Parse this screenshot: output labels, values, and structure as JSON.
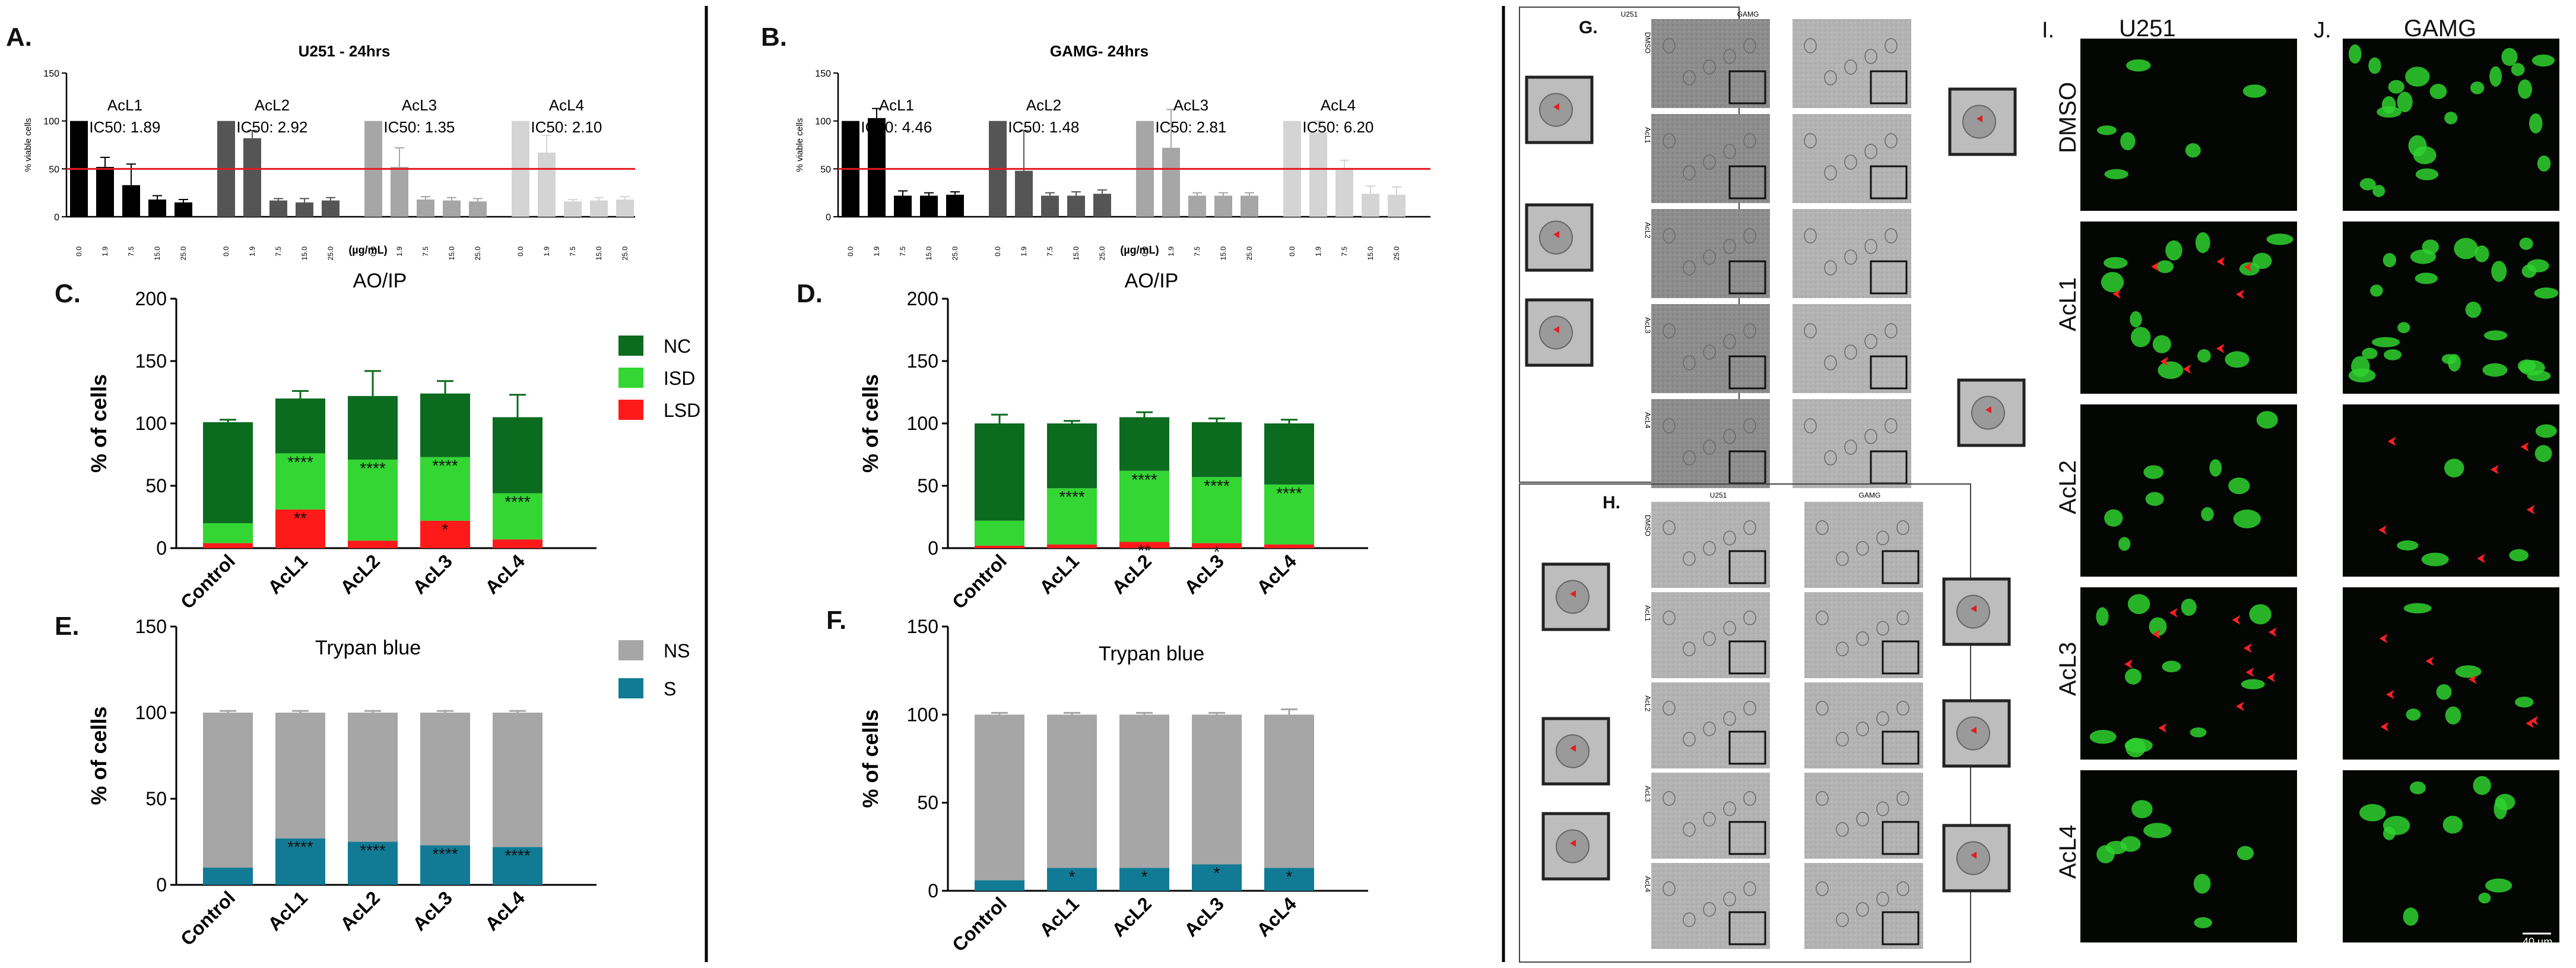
{
  "figure": {
    "panel_labels": [
      "A.",
      "B.",
      "C.",
      "D.",
      "E.",
      "F.",
      "G.",
      "H.",
      "I.",
      "J."
    ],
    "threshold_color": "#e31a1c"
  },
  "chart_data": [
    {
      "id": "A",
      "type": "bar",
      "title": "U251 - 24hrs",
      "xlabel": "(µg/mL)",
      "ylabel": "% viable cells",
      "ylim": [
        0,
        150
      ],
      "yticks": [
        0,
        50,
        100,
        150
      ],
      "threshold": 50,
      "groups": [
        {
          "name": "AcL1",
          "ic50": "IC50: 1.89",
          "color": "#000000",
          "doses": [
            "0.0",
            "1.9",
            "7.5",
            "15.0",
            "25.0"
          ],
          "values": [
            100,
            52,
            33,
            18,
            15
          ],
          "errors": [
            0,
            10,
            22,
            4,
            3
          ]
        },
        {
          "name": "AcL2",
          "ic50": "IC50: 2.92",
          "color": "#555555",
          "doses": [
            "0.0",
            "1.9",
            "7.5",
            "15.0",
            "25.0"
          ],
          "values": [
            100,
            82,
            17,
            15,
            17
          ],
          "errors": [
            0,
            8,
            2,
            4,
            3
          ]
        },
        {
          "name": "AcL3",
          "ic50": "IC50: 1.35",
          "color": "#a6a6a6",
          "doses": [
            "0.0",
            "1.9",
            "7.5",
            "15.0",
            "25.0"
          ],
          "values": [
            100,
            52,
            18,
            17,
            16
          ],
          "errors": [
            0,
            20,
            3,
            3,
            3
          ]
        },
        {
          "name": "AcL4",
          "ic50": "IC50: 2.10",
          "color": "#d4d4d4",
          "doses": [
            "0.0",
            "1.9",
            "7.5",
            "15.0",
            "25.0"
          ],
          "values": [
            100,
            67,
            16,
            17,
            18
          ],
          "errors": [
            0,
            18,
            2,
            3,
            3
          ]
        }
      ]
    },
    {
      "id": "B",
      "type": "bar",
      "title": "GAMG- 24hrs",
      "xlabel": "(µg/mL)",
      "ylabel": "% viable cells",
      "ylim": [
        0,
        150
      ],
      "yticks": [
        0,
        50,
        100,
        150
      ],
      "threshold": 50,
      "groups": [
        {
          "name": "AcL1",
          "ic50": "IC50: 4.46",
          "color": "#000000",
          "doses": [
            "0.0",
            "1.9",
            "7.5",
            "15.0",
            "25.0"
          ],
          "values": [
            100,
            103,
            22,
            22,
            23
          ],
          "errors": [
            0,
            10,
            5,
            3,
            3
          ]
        },
        {
          "name": "AcL2",
          "ic50": "IC50: 1.48",
          "color": "#555555",
          "doses": [
            "0.0",
            "1.9",
            "7.5",
            "15.0",
            "25.0"
          ],
          "values": [
            100,
            48,
            22,
            22,
            24
          ],
          "errors": [
            0,
            42,
            3,
            4,
            4
          ]
        },
        {
          "name": "AcL3",
          "ic50": "IC50: 2.81",
          "color": "#a6a6a6",
          "doses": [
            "0.0",
            "1.9",
            "7.5",
            "15.0",
            "25.0"
          ],
          "values": [
            100,
            72,
            22,
            22,
            22
          ],
          "errors": [
            0,
            40,
            3,
            3,
            3
          ]
        },
        {
          "name": "AcL4",
          "ic50": "IC50: 6.20",
          "color": "#d4d4d4",
          "doses": [
            "0.0",
            "1.9",
            "7.5",
            "15.0",
            "25.0"
          ],
          "values": [
            100,
            88,
            49,
            24,
            23
          ],
          "errors": [
            0,
            12,
            10,
            8,
            8
          ]
        }
      ]
    },
    {
      "id": "C",
      "type": "stacked-bar",
      "title": "AO/IP",
      "ylabel": "% of cells",
      "ylim": [
        0,
        200
      ],
      "yticks": [
        0,
        50,
        100,
        150,
        200
      ],
      "categories": [
        "Control",
        "AcL1",
        "AcL2",
        "AcL3",
        "AcL4"
      ],
      "legend": true,
      "series": [
        {
          "name": "LSD",
          "color": "#ff1a1a",
          "values": [
            4,
            31,
            6,
            22,
            7
          ],
          "errors": [
            1,
            4,
            5,
            6,
            7
          ],
          "labels": [
            "",
            "**",
            "",
            "*",
            ""
          ]
        },
        {
          "name": "ISD",
          "color": "#33d633",
          "values": [
            16,
            45,
            65,
            51,
            37
          ],
          "errors": [
            2,
            10,
            0,
            5,
            8
          ],
          "labels": [
            "",
            "****",
            "****",
            "****",
            "****"
          ]
        },
        {
          "name": "NC",
          "color": "#0b6b1f",
          "values": [
            81,
            44,
            51,
            51,
            61
          ],
          "errors": [
            2,
            6,
            20,
            10,
            18
          ],
          "labels": [
            "",
            "",
            "",
            "",
            ""
          ]
        }
      ]
    },
    {
      "id": "D",
      "type": "stacked-bar",
      "title": "AO/IP",
      "ylabel": "% of cells",
      "ylim": [
        0,
        200
      ],
      "yticks": [
        0,
        50,
        100,
        150,
        200
      ],
      "categories": [
        "Control",
        "AcL1",
        "AcL2",
        "AcL3",
        "AcL4"
      ],
      "legend": false,
      "series": [
        {
          "name": "LSD",
          "color": "#ff1a1a",
          "values": [
            2,
            3,
            5,
            4,
            3
          ],
          "errors": [
            1,
            1,
            1,
            1,
            1
          ],
          "labels": [
            "",
            "",
            "**",
            "*",
            ""
          ]
        },
        {
          "name": "ISD",
          "color": "#33d633",
          "values": [
            20,
            45,
            57,
            53,
            48
          ],
          "errors": [
            4,
            3,
            2,
            2,
            2
          ],
          "labels": [
            "",
            "****",
            "****",
            "****",
            "****"
          ]
        },
        {
          "name": "NC",
          "color": "#0b6b1f",
          "values": [
            78,
            52,
            43,
            44,
            49
          ],
          "errors": [
            7,
            2,
            4,
            3,
            3
          ],
          "labels": [
            "",
            "",
            "",
            "",
            ""
          ]
        }
      ]
    },
    {
      "id": "E",
      "type": "stacked-bar",
      "title": "Trypan blue",
      "ylabel": "% of cells",
      "ylim": [
        0,
        150
      ],
      "yticks": [
        0,
        50,
        100,
        150
      ],
      "categories": [
        "Control",
        "AcL1",
        "AcL2",
        "AcL3",
        "AcL4"
      ],
      "legend": true,
      "series": [
        {
          "name": "S",
          "color": "#117b95",
          "values": [
            10,
            27,
            25,
            23,
            22
          ],
          "errors": [
            0,
            1,
            1,
            1,
            1
          ],
          "labels": [
            "",
            "****",
            "****",
            "****",
            "****"
          ]
        },
        {
          "name": "NS",
          "color": "#a6a6a6",
          "values": [
            90,
            73,
            75,
            77,
            78
          ],
          "errors": [
            1,
            1,
            1,
            1,
            1
          ],
          "labels": [
            "",
            "",
            "",
            "",
            ""
          ]
        }
      ]
    },
    {
      "id": "F",
      "type": "stacked-bar",
      "title": "Trypan blue",
      "ylabel": "% of cells",
      "ylim": [
        0,
        150
      ],
      "yticks": [
        0,
        50,
        100,
        150
      ],
      "categories": [
        "Control",
        "AcL1",
        "AcL2",
        "AcL3",
        "AcL4"
      ],
      "legend": false,
      "series": [
        {
          "name": "S",
          "color": "#117b95",
          "values": [
            6,
            13,
            13,
            15,
            13
          ],
          "errors": [
            0,
            1,
            1,
            1,
            3
          ],
          "labels": [
            "",
            "*",
            "*",
            "*",
            "*"
          ]
        },
        {
          "name": "NS",
          "color": "#a6a6a6",
          "values": [
            94,
            87,
            87,
            85,
            87
          ],
          "errors": [
            1,
            1,
            1,
            1,
            3
          ],
          "labels": [
            "",
            "",
            "",
            "",
            ""
          ]
        }
      ]
    }
  ],
  "micrographs": {
    "G": {
      "col_headers": [
        "U251",
        "GAMG"
      ],
      "rows": [
        "DMSO",
        "AcL1",
        "AcL2",
        "AcL3",
        "AcL4"
      ]
    },
    "H": {
      "col_headers": [
        "U251",
        "GAMG"
      ],
      "rows": [
        "DMSO",
        "AcL1",
        "AcL2",
        "AcL3",
        "AcL4"
      ]
    },
    "IJ": {
      "col_headers": [
        "U251",
        "GAMG"
      ],
      "rows": [
        "DMSO",
        "AcL1",
        "AcL2",
        "AcL3",
        "AcL4"
      ],
      "scale_bar": "40 µm"
    }
  }
}
